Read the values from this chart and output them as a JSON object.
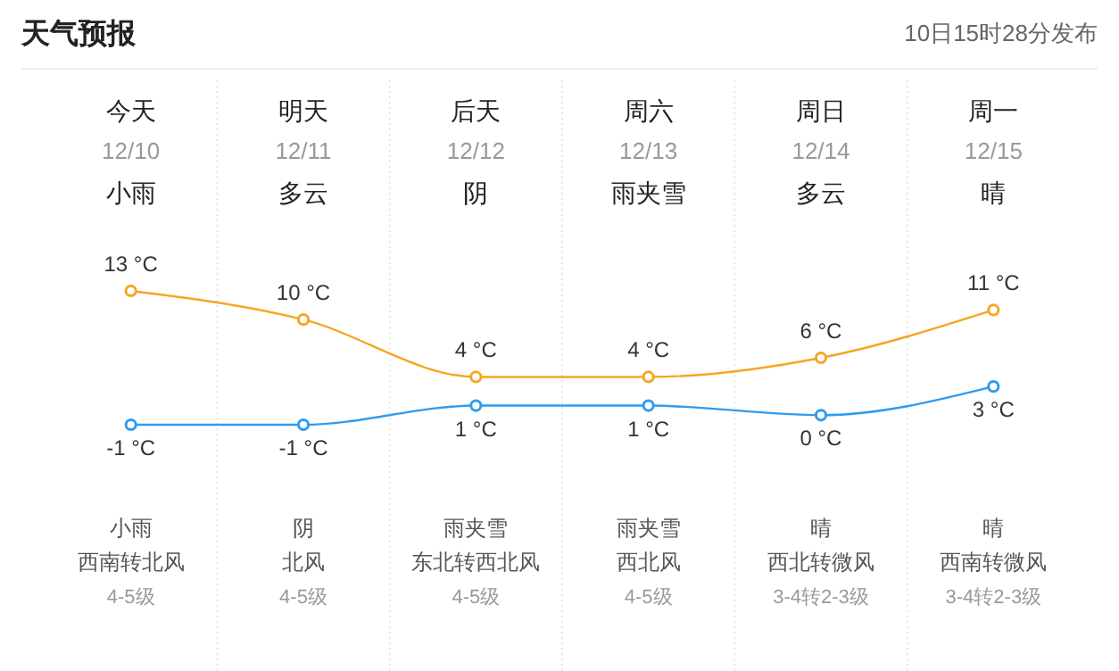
{
  "chart_data": {
    "type": "line",
    "title": "天气预报",
    "categories": [
      "今天",
      "明天",
      "后天",
      "周六",
      "周日",
      "周一"
    ],
    "series": [
      {
        "color": "#f5a623",
        "values": [
          13,
          10,
          4,
          4,
          6,
          11
        ],
        "value_labels": [
          "13 °C",
          "10 °C",
          "4 °C",
          "4 °C",
          "6 °C",
          "11 °C"
        ]
      },
      {
        "color": "#2d9cf0",
        "values": [
          -1,
          -1,
          1,
          1,
          0,
          3
        ],
        "value_labels": [
          "-1 °C",
          "-1 °C",
          "1 °C",
          "1 °C",
          "0 °C",
          "3 °C"
        ]
      }
    ],
    "marker": "circle",
    "grid": "x",
    "annotations": [
      "10日15时28分发布",
      "12/10",
      "小雨",
      "小雨",
      "西南转北风",
      "4-5级",
      "12/11",
      "多云",
      "阴",
      "北风",
      "4-5级",
      "12/12",
      "阴",
      "雨夹雪",
      "东北转西北风",
      "4-5级",
      "12/13",
      "雨夹雪",
      "雨夹雪",
      "西北风",
      "4-5级",
      "12/14",
      "多云",
      "晴",
      "西北转微风",
      "3-4转2-3级",
      "12/15",
      "晴",
      "晴",
      "西南转微风",
      "3-4转2-3级"
    ]
  }
}
